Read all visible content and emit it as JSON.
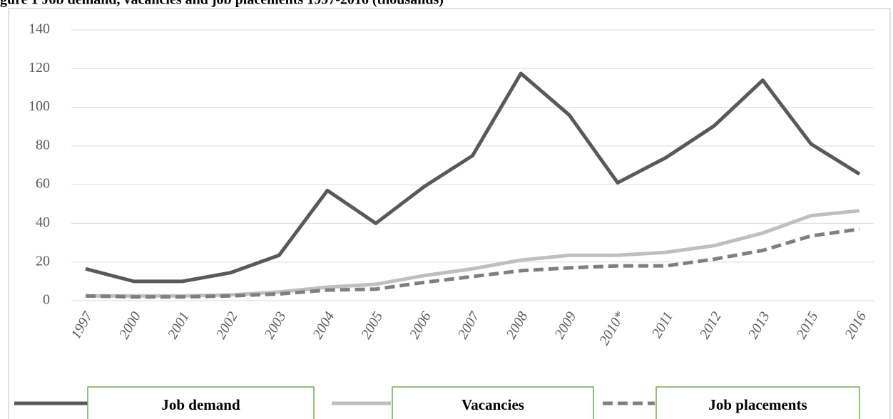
{
  "chart_data": {
    "type": "line",
    "title": "gure 1 Job demand, vacancies and job placements 1997-2016 (thousands)",
    "categories": [
      "1997",
      "2000",
      "2001",
      "2002",
      "2003",
      "2004",
      "2005",
      "2006",
      "2007",
      "2008",
      "2009",
      "2010*",
      "2011",
      "2012",
      "2013",
      "2015",
      "2016"
    ],
    "series": [
      {
        "name": "Job demand",
        "color": "#595959",
        "line_style": "solid",
        "values": [
          16.5,
          10,
          10,
          14.5,
          23.5,
          57,
          40,
          59,
          75,
          117.5,
          96,
          61,
          74,
          90.5,
          114,
          81,
          65.5
        ]
      },
      {
        "name": "Vacancies",
        "color": "#bfbfbf",
        "line_style": "solid",
        "values": [
          2.5,
          2.5,
          2.5,
          3,
          4.5,
          7,
          8.5,
          13,
          16.5,
          21,
          23.5,
          23.5,
          25,
          28.5,
          35,
          44,
          46.5
        ]
      },
      {
        "name": "Job placements",
        "color": "#7f7f7f",
        "line_style": "dashed",
        "values": [
          2.5,
          2,
          2,
          2.5,
          3.5,
          5.5,
          6,
          9.5,
          12.5,
          15.5,
          17,
          18,
          18,
          21.5,
          26,
          33.5,
          37
        ]
      }
    ],
    "ylim": [
      0,
      140
    ],
    "yticks": [
      0,
      20,
      40,
      60,
      80,
      100,
      120,
      140
    ],
    "grid": true,
    "legend": "bottom"
  }
}
